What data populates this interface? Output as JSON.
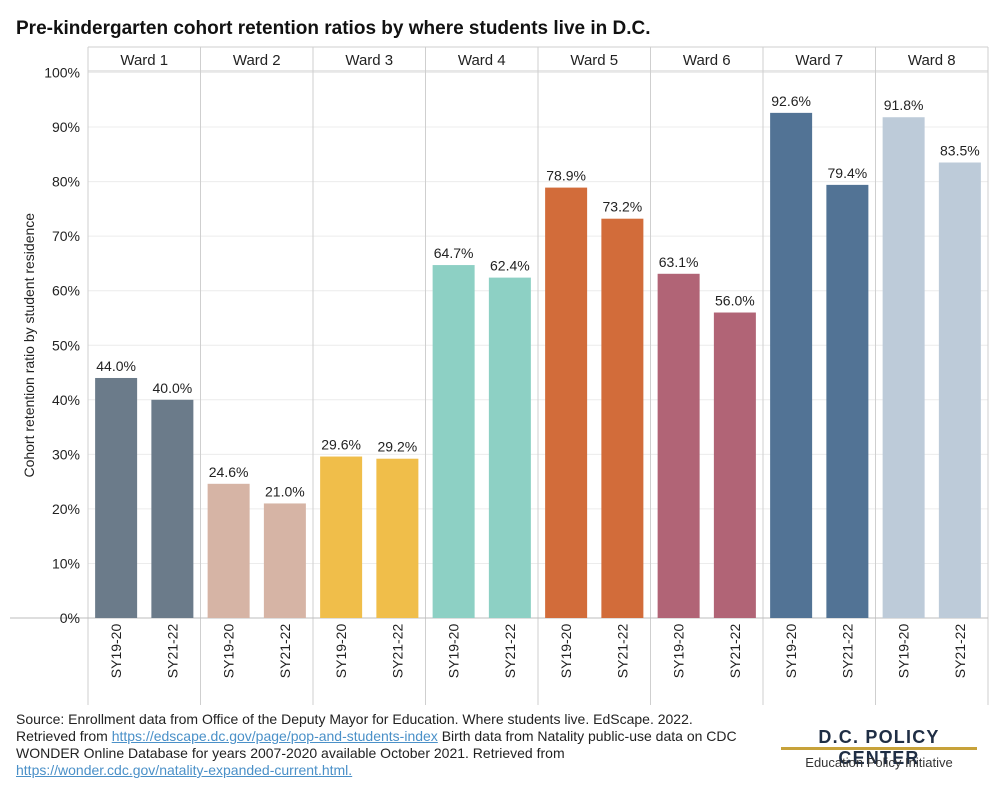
{
  "title": "Pre-kindergarten cohort retention ratios by where students live in D.C.",
  "chart_data": {
    "type": "bar",
    "title": "Pre-kindergarten cohort retention ratios by where students live in D.C.",
    "ylabel": "Cohort retention ratio by student residence",
    "ylim": [
      0,
      100
    ],
    "yticks": [
      "0%",
      "10%",
      "20%",
      "30%",
      "40%",
      "50%",
      "60%",
      "70%",
      "80%",
      "90%",
      "100%"
    ],
    "groups": [
      {
        "name": "Ward 1",
        "color": "#6b7b8a",
        "categories": [
          "SY19-20",
          "SY21-22"
        ],
        "values": [
          44.0,
          40.0
        ],
        "labels": [
          "44.0%",
          "40.0%"
        ]
      },
      {
        "name": "Ward 2",
        "color": "#d6b4a5",
        "categories": [
          "SY19-20",
          "SY21-22"
        ],
        "values": [
          24.6,
          21.0
        ],
        "labels": [
          "24.6%",
          "21.0%"
        ]
      },
      {
        "name": "Ward 3",
        "color": "#f0be4a",
        "categories": [
          "SY19-20",
          "SY21-22"
        ],
        "values": [
          29.6,
          29.2
        ],
        "labels": [
          "29.6%",
          "29.2%"
        ]
      },
      {
        "name": "Ward 4",
        "color": "#8dd0c4",
        "categories": [
          "SY19-20",
          "SY21-22"
        ],
        "values": [
          64.7,
          62.4
        ],
        "labels": [
          "64.7%",
          "62.4%"
        ]
      },
      {
        "name": "Ward 5",
        "color": "#d26c3a",
        "categories": [
          "SY19-20",
          "SY21-22"
        ],
        "values": [
          78.9,
          73.2
        ],
        "labels": [
          "78.9%",
          "73.2%"
        ]
      },
      {
        "name": "Ward 6",
        "color": "#b16476",
        "categories": [
          "SY19-20",
          "SY21-22"
        ],
        "values": [
          63.1,
          56.0
        ],
        "labels": [
          "63.1%",
          "56.0%"
        ]
      },
      {
        "name": "Ward 7",
        "color": "#527395",
        "categories": [
          "SY19-20",
          "SY21-22"
        ],
        "values": [
          92.6,
          79.4
        ],
        "labels": [
          "92.6%",
          "79.4%"
        ]
      },
      {
        "name": "Ward 8",
        "color": "#bdcbd9",
        "categories": [
          "SY19-20",
          "SY21-22"
        ],
        "values": [
          91.8,
          83.5
        ],
        "labels": [
          "91.8%",
          "83.5%"
        ]
      }
    ],
    "grid": true
  },
  "source": {
    "line1": "Source: Enrollment data from Office of the Deputy Mayor for Education. Where students live. EdScape. 2022. Retrieved from ",
    "link1": "https://edscape.dc.gov/page/pop-and-students-index",
    "line2": " Birth data from Natality public-use data on CDC WONDER Online Database for years 2007-2020 available October 2021. Retrieved from ",
    "link2": "https://wonder.cdc.gov/natality-expanded-current.html."
  },
  "logo": {
    "name": "D.C. POLICY CENTER",
    "subtitle": "Education Policy Initiative"
  }
}
